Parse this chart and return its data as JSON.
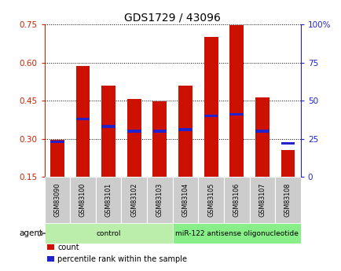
{
  "title": "GDS1729 / 43096",
  "samples": [
    "GSM83090",
    "GSM83100",
    "GSM83101",
    "GSM83102",
    "GSM83103",
    "GSM83104",
    "GSM83105",
    "GSM83106",
    "GSM83107",
    "GSM83108"
  ],
  "count_values": [
    0.295,
    0.585,
    0.51,
    0.455,
    0.448,
    0.51,
    0.7,
    0.748,
    0.462,
    0.255
  ],
  "percentile_values": [
    23,
    38,
    33,
    30,
    30,
    31,
    40,
    41,
    30,
    22
  ],
  "bar_bottom": 0.15,
  "left_ylim": [
    0.15,
    0.75
  ],
  "left_yticks": [
    0.15,
    0.3,
    0.45,
    0.6,
    0.75
  ],
  "right_ylim": [
    0,
    100
  ],
  "right_yticks": [
    0,
    25,
    50,
    75,
    100
  ],
  "right_yticklabels": [
    "0",
    "25",
    "50",
    "75",
    "100%"
  ],
  "bar_color": "#cc1100",
  "percentile_color": "#2222cc",
  "bar_width": 0.55,
  "groups": [
    {
      "label": "control",
      "start": 0,
      "end": 4,
      "color": "#bbeeaa"
    },
    {
      "label": "miR-122 antisense oligonucleotide",
      "start": 5,
      "end": 9,
      "color": "#88ee88"
    }
  ],
  "agent_label": "agent",
  "legend_count_label": "count",
  "legend_percentile_label": "percentile rank within the sample",
  "background_color": "#ffffff",
  "tick_area_color": "#cccccc",
  "left_tick_color": "#cc2200",
  "right_tick_color": "#2222cc",
  "title_fontsize": 10
}
